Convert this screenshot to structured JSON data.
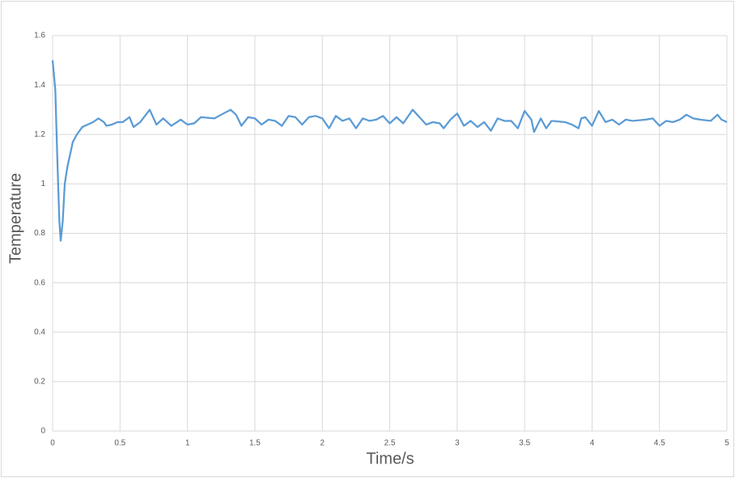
{
  "chart_data": {
    "type": "line",
    "xlabel": "Time/s",
    "ylabel": "Temperature",
    "x": [
      0,
      0.02,
      0.035,
      0.05,
      0.06,
      0.075,
      0.09,
      0.11,
      0.13,
      0.15,
      0.18,
      0.22,
      0.26,
      0.3,
      0.34,
      0.38,
      0.4,
      0.44,
      0.48,
      0.52,
      0.57,
      0.6,
      0.65,
      0.72,
      0.77,
      0.82,
      0.88,
      0.95,
      1.0,
      1.05,
      1.1,
      1.2,
      1.25,
      1.32,
      1.36,
      1.4,
      1.45,
      1.5,
      1.55,
      1.6,
      1.65,
      1.7,
      1.75,
      1.8,
      1.85,
      1.9,
      1.95,
      2.0,
      2.05,
      2.1,
      2.15,
      2.2,
      2.25,
      2.3,
      2.35,
      2.4,
      2.45,
      2.5,
      2.55,
      2.6,
      2.67,
      2.72,
      2.77,
      2.82,
      2.87,
      2.9,
      2.95,
      3.0,
      3.05,
      3.1,
      3.15,
      3.2,
      3.25,
      3.3,
      3.35,
      3.4,
      3.45,
      3.5,
      3.55,
      3.57,
      3.62,
      3.66,
      3.7,
      3.8,
      3.85,
      3.9,
      3.92,
      3.95,
      4.0,
      4.05,
      4.1,
      4.15,
      4.2,
      4.25,
      4.3,
      4.4,
      4.45,
      4.5,
      4.55,
      4.6,
      4.65,
      4.7,
      4.75,
      4.8,
      4.88,
      4.93,
      4.96,
      5.0
    ],
    "values": [
      1.5,
      1.38,
      1.1,
      0.85,
      0.77,
      0.85,
      1.0,
      1.07,
      1.12,
      1.17,
      1.2,
      1.23,
      1.24,
      1.25,
      1.265,
      1.25,
      1.235,
      1.24,
      1.25,
      1.25,
      1.27,
      1.23,
      1.25,
      1.3,
      1.24,
      1.265,
      1.235,
      1.26,
      1.24,
      1.245,
      1.27,
      1.265,
      1.28,
      1.3,
      1.28,
      1.235,
      1.27,
      1.265,
      1.24,
      1.26,
      1.255,
      1.235,
      1.275,
      1.27,
      1.24,
      1.27,
      1.275,
      1.265,
      1.225,
      1.275,
      1.255,
      1.265,
      1.225,
      1.265,
      1.255,
      1.26,
      1.275,
      1.245,
      1.27,
      1.245,
      1.3,
      1.27,
      1.24,
      1.25,
      1.245,
      1.225,
      1.26,
      1.285,
      1.235,
      1.255,
      1.23,
      1.25,
      1.215,
      1.265,
      1.255,
      1.255,
      1.225,
      1.295,
      1.26,
      1.21,
      1.265,
      1.225,
      1.255,
      1.25,
      1.24,
      1.225,
      1.265,
      1.27,
      1.235,
      1.295,
      1.25,
      1.26,
      1.24,
      1.26,
      1.255,
      1.26,
      1.265,
      1.235,
      1.255,
      1.25,
      1.26,
      1.28,
      1.265,
      1.26,
      1.255,
      1.28,
      1.26,
      1.25
    ],
    "color": "#5b9bd5",
    "xlim": [
      0,
      5
    ],
    "xticks": [
      0,
      0.5,
      1,
      1.5,
      2,
      2.5,
      3,
      3.5,
      4,
      4.5,
      5
    ],
    "ylim": [
      0,
      1.6
    ],
    "yticks": [
      0,
      0.2,
      0.4,
      0.6,
      0.8,
      1,
      1.2,
      1.4,
      1.6
    ],
    "grid": true
  }
}
